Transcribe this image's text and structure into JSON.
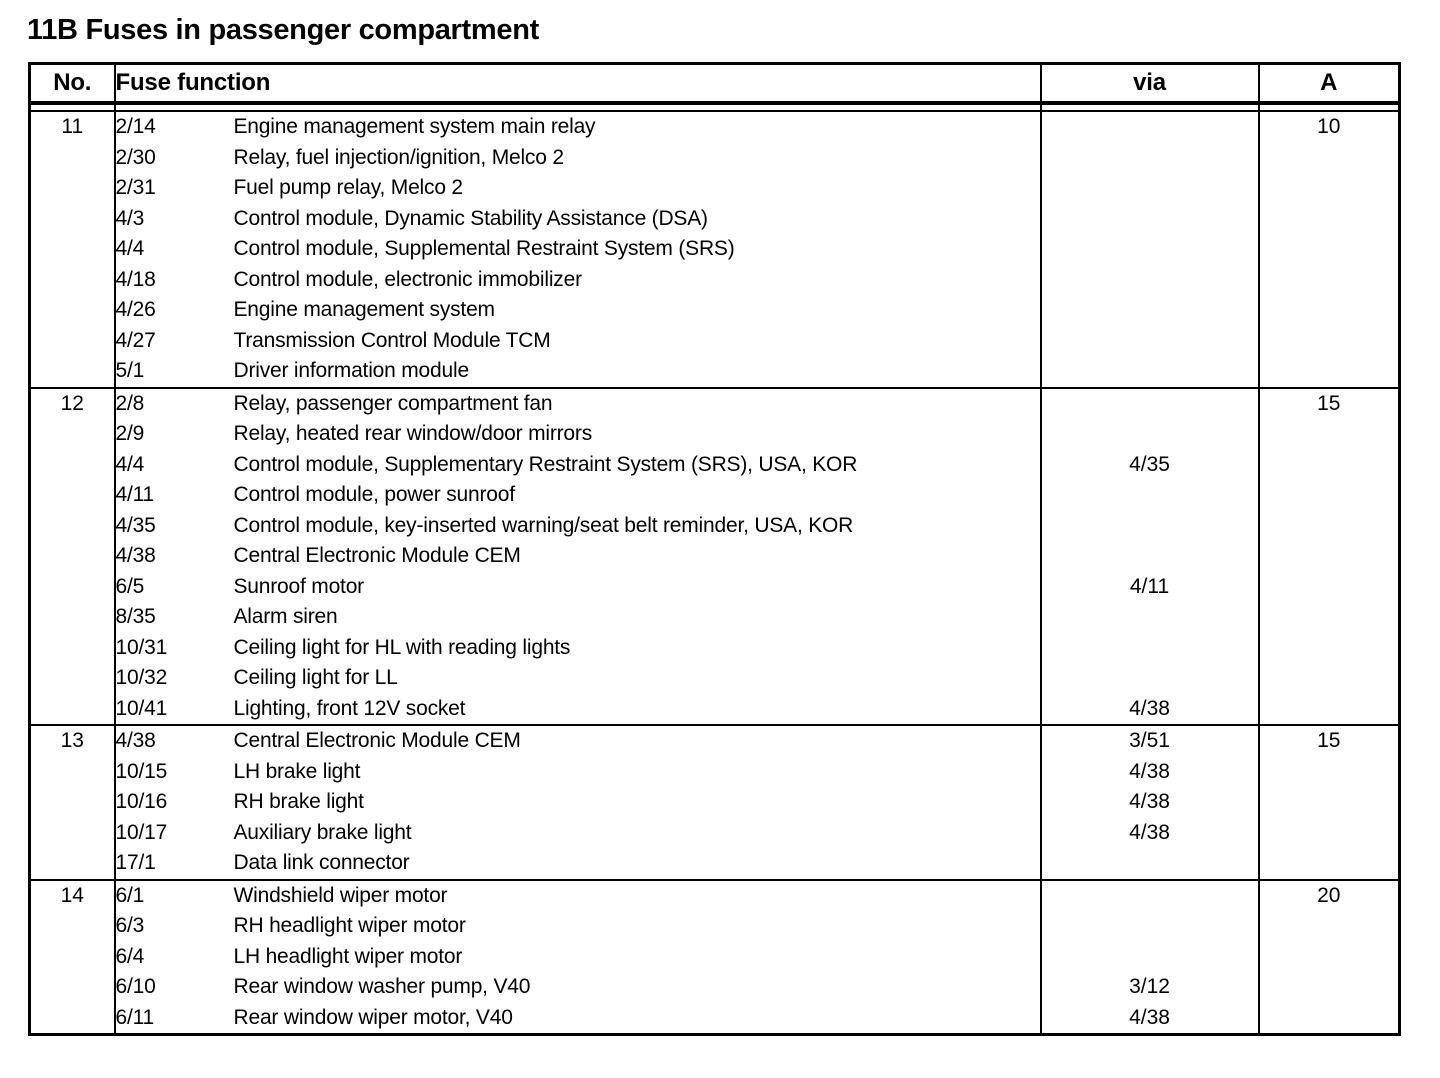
{
  "page_title": "11B Fuses in passenger compartment",
  "table": {
    "headers": {
      "no": "No.",
      "function": "Fuse function",
      "via": "via",
      "amps": "A"
    },
    "rows": [
      {
        "no": "11",
        "amps": "10",
        "lines": [
          {
            "id": "2/14",
            "desc": "Engine management system main relay",
            "via": ""
          },
          {
            "id": "2/30",
            "desc": "Relay, fuel injection/ignition, Melco 2",
            "via": ""
          },
          {
            "id": "2/31",
            "desc": "Fuel pump relay, Melco 2",
            "via": ""
          },
          {
            "id": "4/3",
            "desc": "Control module, Dynamic Stability Assistance (DSA)",
            "via": ""
          },
          {
            "id": "4/4",
            "desc": "Control module, Supplemental Restraint System (SRS)",
            "via": ""
          },
          {
            "id": "4/18",
            "desc": "Control module, electronic immobilizer",
            "via": ""
          },
          {
            "id": "4/26",
            "desc": "Engine management system",
            "via": ""
          },
          {
            "id": "4/27",
            "desc": "Transmission Control Module TCM",
            "via": ""
          },
          {
            "id": "5/1",
            "desc": "Driver information module",
            "via": ""
          }
        ]
      },
      {
        "no": "12",
        "amps": "15",
        "lines": [
          {
            "id": "2/8",
            "desc": "Relay, passenger compartment fan",
            "via": ""
          },
          {
            "id": "2/9",
            "desc": "Relay, heated rear window/door mirrors",
            "via": ""
          },
          {
            "id": "4/4",
            "desc": "Control module, Supplementary Restraint System (SRS), USA, KOR",
            "via": "4/35"
          },
          {
            "id": "4/11",
            "desc": "Control module, power sunroof",
            "via": ""
          },
          {
            "id": "4/35",
            "desc": "Control module, key-inserted warning/seat belt reminder, USA, KOR",
            "via": ""
          },
          {
            "id": "4/38",
            "desc": "Central Electronic Module CEM",
            "via": ""
          },
          {
            "id": "6/5",
            "desc": "Sunroof motor",
            "via": "4/11"
          },
          {
            "id": "8/35",
            "desc": "Alarm siren",
            "via": ""
          },
          {
            "id": "10/31",
            "desc": "Ceiling light for HL with reading lights",
            "via": ""
          },
          {
            "id": "10/32",
            "desc": "Ceiling light for LL",
            "via": ""
          },
          {
            "id": "10/41",
            "desc": "Lighting, front 12V socket",
            "via": "4/38"
          }
        ]
      },
      {
        "no": "13",
        "amps": "15",
        "lines": [
          {
            "id": "4/38",
            "desc": "Central Electronic Module CEM",
            "via": "3/51"
          },
          {
            "id": "10/15",
            "desc": "LH brake light",
            "via": "4/38"
          },
          {
            "id": "10/16",
            "desc": "RH brake light",
            "via": "4/38"
          },
          {
            "id": "10/17",
            "desc": "Auxiliary brake light",
            "via": "4/38"
          },
          {
            "id": "17/1",
            "desc": "Data link connector",
            "via": ""
          }
        ]
      },
      {
        "no": "14",
        "amps": "20",
        "lines": [
          {
            "id": "6/1",
            "desc": "Windshield wiper motor",
            "via": ""
          },
          {
            "id": "6/3",
            "desc": "RH headlight wiper motor",
            "via": ""
          },
          {
            "id": "6/4",
            "desc": "LH headlight wiper motor",
            "via": ""
          },
          {
            "id": "6/10",
            "desc": "Rear window washer pump, V40",
            "via": "3/12"
          },
          {
            "id": "6/11",
            "desc": "Rear window wiper motor, V40",
            "via": "4/38"
          }
        ]
      }
    ]
  }
}
